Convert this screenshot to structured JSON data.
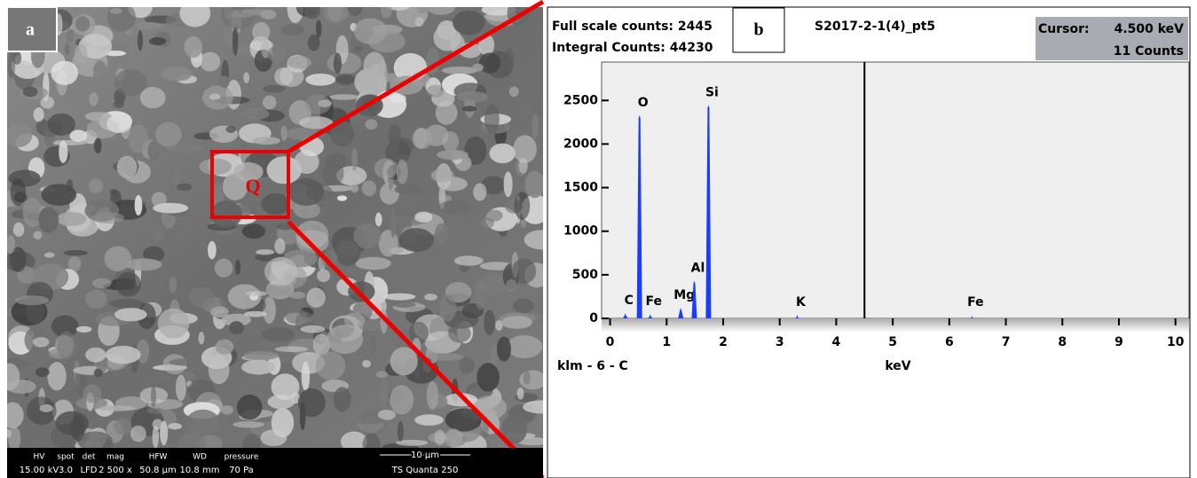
{
  "panel_a": {
    "label": "a",
    "region": "Q",
    "info": [
      {
        "heading": "HV",
        "value": "15.00 kV"
      },
      {
        "heading": "spot",
        "value": "3.0"
      },
      {
        "heading": "det",
        "value": "LFD"
      },
      {
        "heading": "mag",
        "value": "2 500 x"
      },
      {
        "heading": "HFW",
        "value": "50.8 µm"
      },
      {
        "heading": "WD",
        "value": "10.8 mm"
      },
      {
        "heading": "pressure",
        "value": "70 Pa"
      }
    ],
    "scale_bar": "10 µm",
    "instrument": "TS Quanta 250"
  },
  "chart_data": {
    "type": "spectrum",
    "panel_label": "b",
    "full_scale": "Full scale counts: 2445",
    "integral": "Integral Counts: 44230",
    "title": "S2017-2-1(4)_pt5",
    "cursor_label": "Cursor:",
    "cursor": {
      "value": 4.5,
      "label": "4.500 keV"
    },
    "cursor_counts": "11 Counts",
    "x": [
      0.27,
      0.52,
      0.71,
      1.25,
      1.49,
      1.74,
      3.31,
      6.4
    ],
    "values": [
      60,
      2330,
      50,
      120,
      430,
      2445,
      40,
      30
    ],
    "peak_labels": [
      "C",
      "O",
      "Fe",
      "Mg",
      "Al",
      "Si",
      "K",
      "Fe"
    ],
    "color": "#1a3cff",
    "xlim": [
      -0.15,
      10.24
    ],
    "xticks": [
      0,
      1,
      2,
      3,
      4,
      5,
      6,
      7,
      8,
      9,
      10
    ],
    "ylim": [
      0,
      2940
    ],
    "yticks": [
      0,
      500,
      1000,
      1500,
      2000,
      2500
    ],
    "xlabel": "keV",
    "ylabel_left": "klm - 6 - C"
  }
}
